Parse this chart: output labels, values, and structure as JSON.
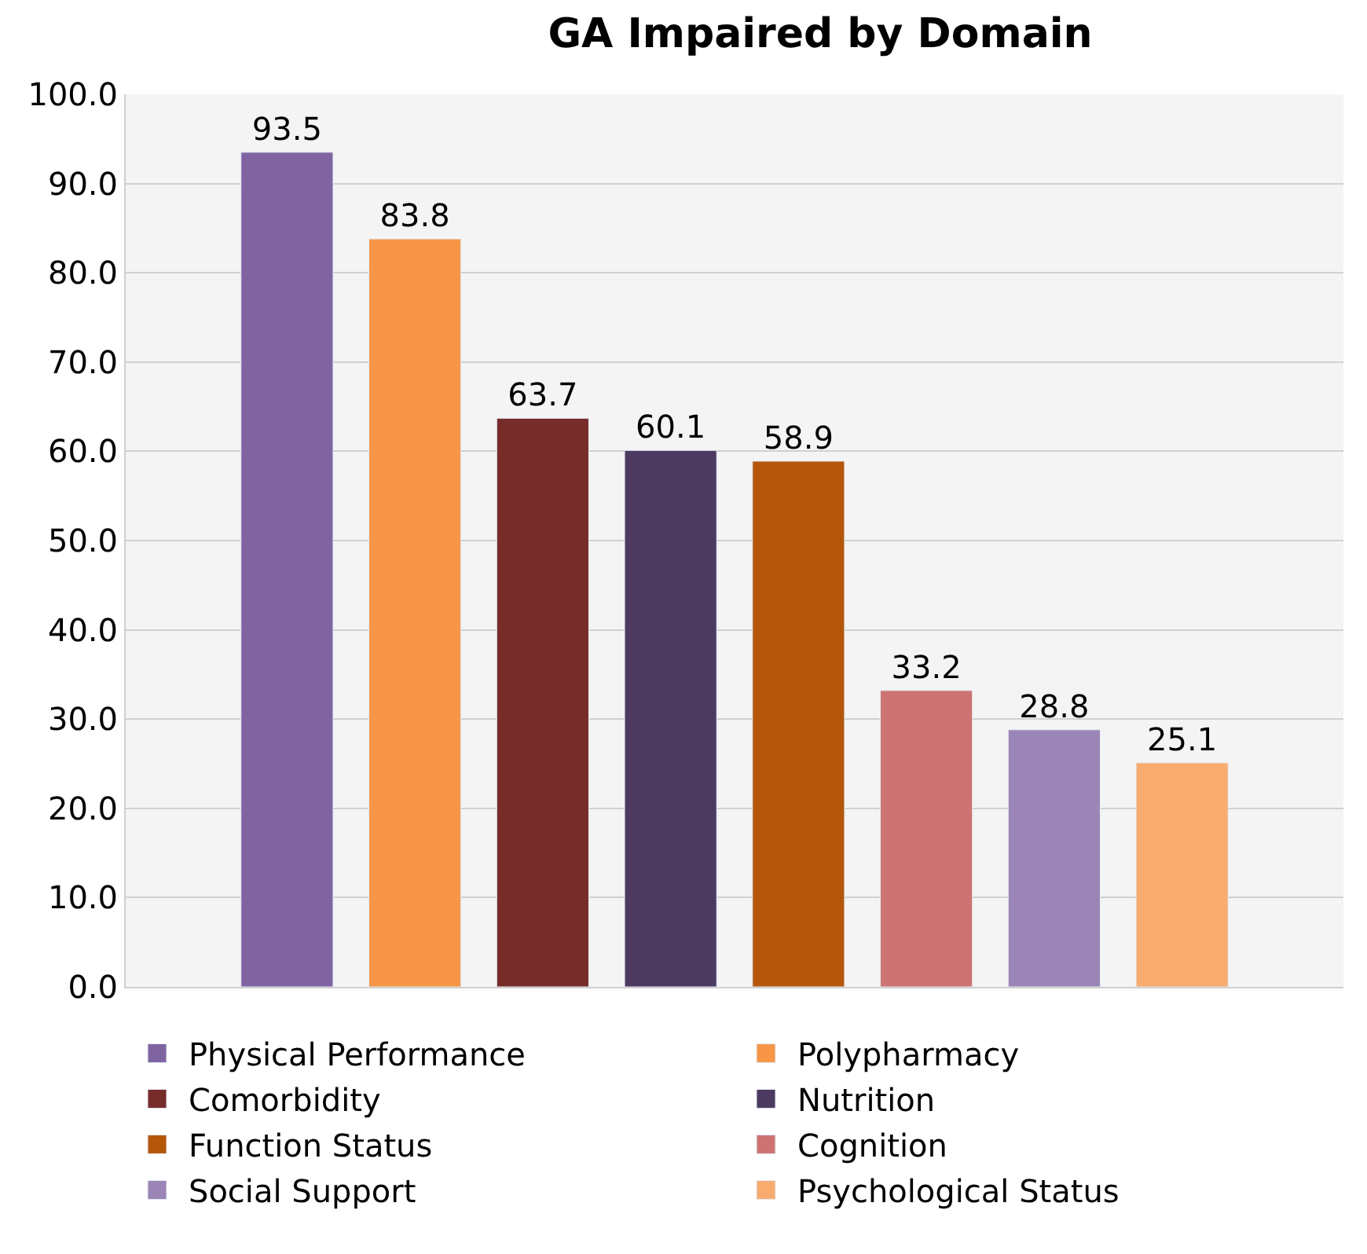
{
  "chart_data": {
    "type": "bar",
    "title": "GA Impaired by Domain",
    "categories": [
      null
    ],
    "series": [
      {
        "name": "Physical Performance",
        "color": "#8064a2",
        "values": [
          93.5
        ]
      },
      {
        "name": "Polypharmacy",
        "color": "#f79646",
        "values": [
          83.8
        ]
      },
      {
        "name": "Comorbidity",
        "color": "#772c2a",
        "values": [
          63.7
        ]
      },
      {
        "name": "Nutrition",
        "color": "#4d3a60",
        "values": [
          60.1
        ]
      },
      {
        "name": "Function Status",
        "color": "#b5570b",
        "values": [
          58.9
        ]
      },
      {
        "name": "Cognition",
        "color": "#cd7371",
        "values": [
          33.2
        ]
      },
      {
        "name": "Social Support",
        "color": "#9b85b6",
        "values": [
          28.8
        ]
      },
      {
        "name": "Psychological Status",
        "color": "#f9ac70",
        "values": [
          25.1
        ]
      }
    ],
    "ylim": [
      0,
      100
    ],
    "yticks": [
      {
        "value": 0,
        "label": "0.0"
      },
      {
        "value": 10,
        "label": "10.0"
      },
      {
        "value": 20,
        "label": "20.0"
      },
      {
        "value": 30,
        "label": "30.0"
      },
      {
        "value": 40,
        "label": "40.0"
      },
      {
        "value": 50,
        "label": "50.0"
      },
      {
        "value": 60,
        "label": "60.0"
      },
      {
        "value": 70,
        "label": "70.0"
      },
      {
        "value": 80,
        "label": "80.0"
      },
      {
        "value": 90,
        "label": "90.0"
      },
      {
        "value": 100,
        "label": "100.0"
      }
    ],
    "grid": "y",
    "legend": "bottom",
    "data_labels": true
  }
}
